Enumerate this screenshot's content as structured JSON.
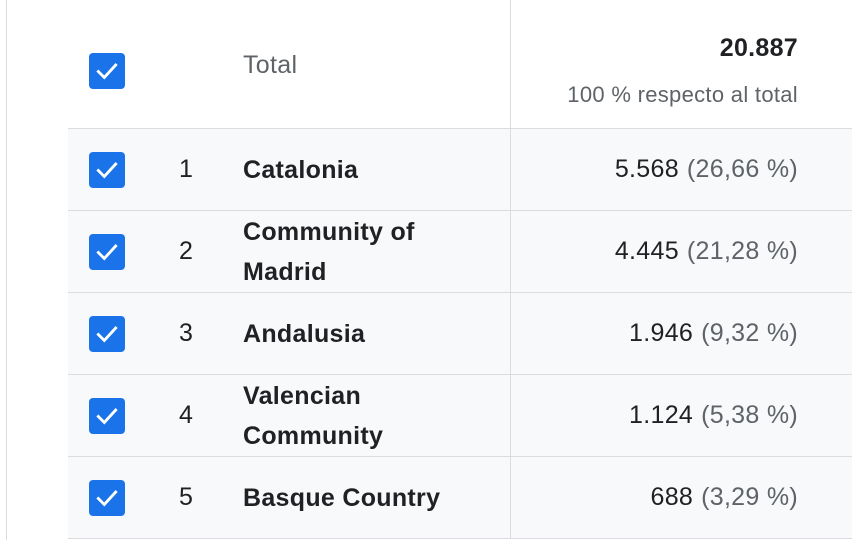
{
  "total": {
    "label": "Total",
    "value": "20.887",
    "subtitle": "100 % respecto al total",
    "checked": true
  },
  "rows": [
    {
      "rank": "1",
      "label": "Catalonia",
      "value": "5.568",
      "pct": "(26,66 %)",
      "checked": true
    },
    {
      "rank": "2",
      "label": "Community of Madrid",
      "value": "4.445",
      "pct": "(21,28 %)",
      "checked": true
    },
    {
      "rank": "3",
      "label": "Andalusia",
      "value": "1.946",
      "pct": "(9,32 %)",
      "checked": true
    },
    {
      "rank": "4",
      "label": "Valencian Community",
      "value": "1.124",
      "pct": "(5,38 %)",
      "checked": true
    },
    {
      "rank": "5",
      "label": "Basque Country",
      "value": "688",
      "pct": "(3,29 %)",
      "checked": true
    }
  ],
  "colors": {
    "checkbox": "#1a73e8",
    "row_bg": "#f8f9fa",
    "divider": "#dadce0",
    "muted_text": "#5f6368"
  },
  "icons": {
    "checkbox": "check-icon"
  }
}
